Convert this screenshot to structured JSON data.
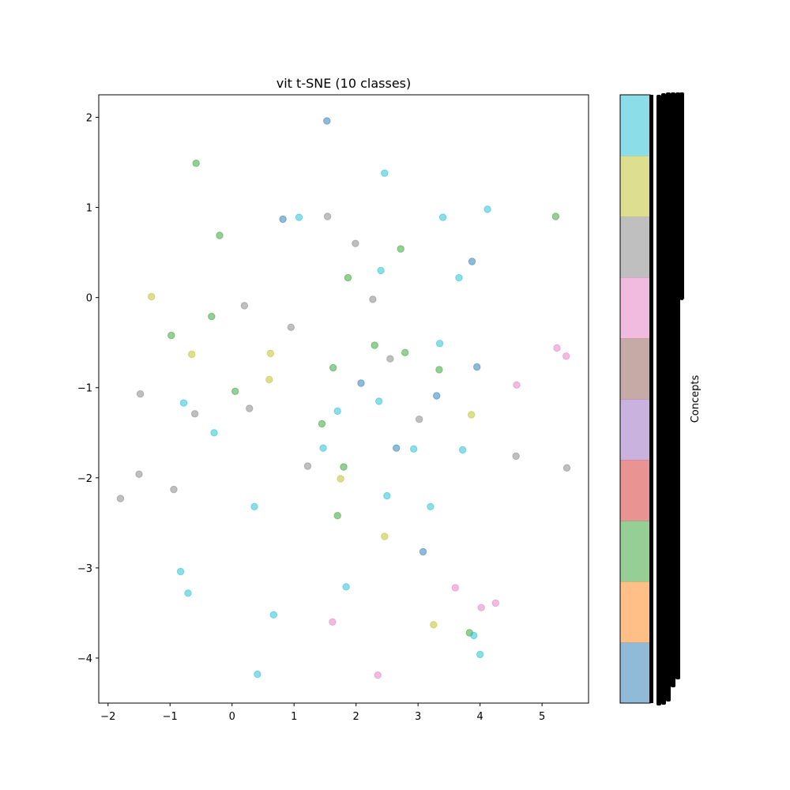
{
  "chart_data": {
    "type": "scatter",
    "title": "vit t-SNE (10 classes)",
    "xlabel": "",
    "ylabel": "",
    "xlim": [
      -2.15,
      5.75
    ],
    "ylim": [
      -4.5,
      2.25
    ],
    "xticks": [
      -2,
      -1,
      0,
      1,
      2,
      3,
      4,
      5
    ],
    "yticks": [
      -4,
      -3,
      -2,
      -1,
      0,
      1,
      2
    ],
    "grid": false,
    "marker_alpha": 0.5,
    "colorbar": {
      "label": "Concepts",
      "colors": [
        "#1f77b4",
        "#ff7f0e",
        "#2ca02c",
        "#d62728",
        "#9467bd",
        "#8c564b",
        "#e377c2",
        "#7f7f7f",
        "#bcbd22",
        "#17becf"
      ]
    },
    "series": [
      {
        "color": "#1f77b4",
        "points": [
          [
            1.53,
            1.96
          ],
          [
            0.82,
            0.87
          ],
          [
            3.87,
            0.4
          ],
          [
            3.95,
            -0.77
          ],
          [
            2.08,
            -0.95
          ],
          [
            3.3,
            -1.09
          ],
          [
            2.65,
            -1.67
          ],
          [
            3.08,
            -2.82
          ]
        ]
      },
      {
        "color": "#2ca02c",
        "points": [
          [
            -0.58,
            1.49
          ],
          [
            -0.2,
            0.69
          ],
          [
            5.22,
            0.9
          ],
          [
            2.72,
            0.54
          ],
          [
            1.87,
            0.22
          ],
          [
            -0.33,
            -0.21
          ],
          [
            -0.98,
            -0.42
          ],
          [
            2.3,
            -0.53
          ],
          [
            2.79,
            -0.61
          ],
          [
            1.63,
            -0.78
          ],
          [
            3.34,
            -0.8
          ],
          [
            0.05,
            -1.04
          ],
          [
            1.45,
            -1.4
          ],
          [
            1.8,
            -1.88
          ],
          [
            1.7,
            -2.42
          ],
          [
            3.83,
            -3.72
          ]
        ]
      },
      {
        "color": "#e377c2",
        "points": [
          [
            5.24,
            -0.56
          ],
          [
            5.39,
            -0.65
          ],
          [
            4.59,
            -0.97
          ],
          [
            3.6,
            -3.22
          ],
          [
            4.02,
            -3.44
          ],
          [
            4.25,
            -3.39
          ],
          [
            1.62,
            -3.6
          ],
          [
            2.35,
            -4.19
          ]
        ]
      },
      {
        "color": "#7f7f7f",
        "points": [
          [
            1.54,
            0.9
          ],
          [
            1.99,
            0.6
          ],
          [
            2.27,
            -0.02
          ],
          [
            0.2,
            -0.09
          ],
          [
            0.95,
            -0.33
          ],
          [
            2.55,
            -0.68
          ],
          [
            -1.48,
            -1.07
          ],
          [
            -0.6,
            -1.29
          ],
          [
            0.28,
            -1.23
          ],
          [
            3.02,
            -1.35
          ],
          [
            1.22,
            -1.87
          ],
          [
            4.58,
            -1.76
          ],
          [
            5.4,
            -1.89
          ],
          [
            -1.5,
            -1.96
          ],
          [
            -0.94,
            -2.13
          ],
          [
            -1.8,
            -2.23
          ]
        ]
      },
      {
        "color": "#bcbd22",
        "points": [
          [
            -1.3,
            0.01
          ],
          [
            -0.65,
            -0.63
          ],
          [
            0.62,
            -0.62
          ],
          [
            0.6,
            -0.91
          ],
          [
            3.86,
            -1.3
          ],
          [
            1.75,
            -2.01
          ],
          [
            2.46,
            -2.65
          ],
          [
            3.25,
            -3.63
          ]
        ]
      },
      {
        "color": "#17becf",
        "points": [
          [
            2.46,
            1.38
          ],
          [
            1.08,
            0.89
          ],
          [
            3.4,
            0.89
          ],
          [
            4.12,
            0.98
          ],
          [
            2.4,
            0.3
          ],
          [
            3.66,
            0.22
          ],
          [
            3.35,
            -0.51
          ],
          [
            -0.78,
            -1.17
          ],
          [
            1.7,
            -1.26
          ],
          [
            2.37,
            -1.15
          ],
          [
            -0.29,
            -1.5
          ],
          [
            1.47,
            -1.67
          ],
          [
            2.93,
            -1.68
          ],
          [
            3.72,
            -1.69
          ],
          [
            2.5,
            -2.2
          ],
          [
            3.2,
            -2.32
          ],
          [
            0.36,
            -2.32
          ],
          [
            -0.83,
            -3.04
          ],
          [
            -0.71,
            -3.28
          ],
          [
            1.84,
            -3.21
          ],
          [
            0.67,
            -3.52
          ],
          [
            3.9,
            -3.75
          ],
          [
            4.0,
            -3.96
          ],
          [
            0.41,
            -4.18
          ]
        ]
      }
    ]
  }
}
